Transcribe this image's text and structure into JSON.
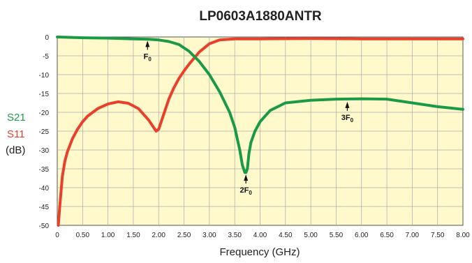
{
  "chart_data": {
    "type": "line",
    "title": "LP0603A1880ANTR",
    "xlabel": "Frequency (GHz)",
    "ylabel": "(dB)",
    "xlim": [
      0,
      8
    ],
    "ylim": [
      -50,
      0
    ],
    "grid": true,
    "x_ticks": [
      "0",
      "0.50",
      "1.00",
      "1.50",
      "2.00",
      "2.50",
      "3.00",
      "3.50",
      "4.00",
      "4.50",
      "5.00",
      "5.50",
      "6.00",
      "6.50",
      "7.00",
      "7.50",
      "8.00"
    ],
    "y_ticks": [
      "0",
      "-5",
      "-10",
      "-15",
      "-20",
      "-25",
      "-30",
      "-35",
      "-40",
      "-45",
      "-50"
    ],
    "legend_placement": "left",
    "series": [
      {
        "name": "S21",
        "color": "#1a9a46",
        "x": [
          0,
          0.5,
          1.0,
          1.5,
          1.8,
          2.0,
          2.2,
          2.4,
          2.6,
          2.8,
          3.0,
          3.2,
          3.4,
          3.5,
          3.6,
          3.65,
          3.7,
          3.72,
          3.75,
          3.78,
          3.82,
          3.9,
          4.0,
          4.2,
          4.5,
          5.0,
          5.5,
          6.0,
          6.5,
          7.0,
          7.5,
          8.0
        ],
        "y": [
          0,
          -0.2,
          -0.3,
          -0.5,
          -0.6,
          -0.8,
          -1.2,
          -2.0,
          -3.8,
          -6.5,
          -10.0,
          -14.5,
          -20.0,
          -24.0,
          -30.0,
          -34.0,
          -36.0,
          -36.0,
          -35.0,
          -31.0,
          -28.0,
          -25.0,
          -22.5,
          -19.5,
          -17.5,
          -16.8,
          -16.5,
          -16.4,
          -16.5,
          -17.5,
          -18.5,
          -19.2
        ]
      },
      {
        "name": "S11",
        "color": "#e8402a",
        "x": [
          0.02,
          0.05,
          0.1,
          0.15,
          0.2,
          0.3,
          0.4,
          0.5,
          0.6,
          0.8,
          1.0,
          1.2,
          1.4,
          1.6,
          1.8,
          1.9,
          1.95,
          2.0,
          2.1,
          2.2,
          2.3,
          2.4,
          2.5,
          2.6,
          2.8,
          3.0,
          3.2,
          3.5,
          4.0,
          5.0,
          6.0,
          7.0,
          8.0
        ],
        "y": [
          -50,
          -45,
          -37,
          -33,
          -30.5,
          -27,
          -24.5,
          -22.5,
          -21.0,
          -19.0,
          -17.8,
          -17.2,
          -17.6,
          -19.0,
          -22.0,
          -24.0,
          -25.0,
          -24.5,
          -20.5,
          -16.5,
          -13.5,
          -11.0,
          -9.0,
          -7.2,
          -4.0,
          -1.8,
          -0.8,
          -0.5,
          -0.5,
          -0.4,
          -0.5,
          -0.5,
          -0.5
        ]
      }
    ],
    "annotations": [
      {
        "label": "F",
        "sub": "0",
        "x": 1.78,
        "y": -1.0
      },
      {
        "label": "2F",
        "sub": "0",
        "x": 3.72,
        "y": -36.5
      },
      {
        "label": "3F",
        "sub": "0",
        "x": 5.72,
        "y": -17.2
      }
    ]
  }
}
